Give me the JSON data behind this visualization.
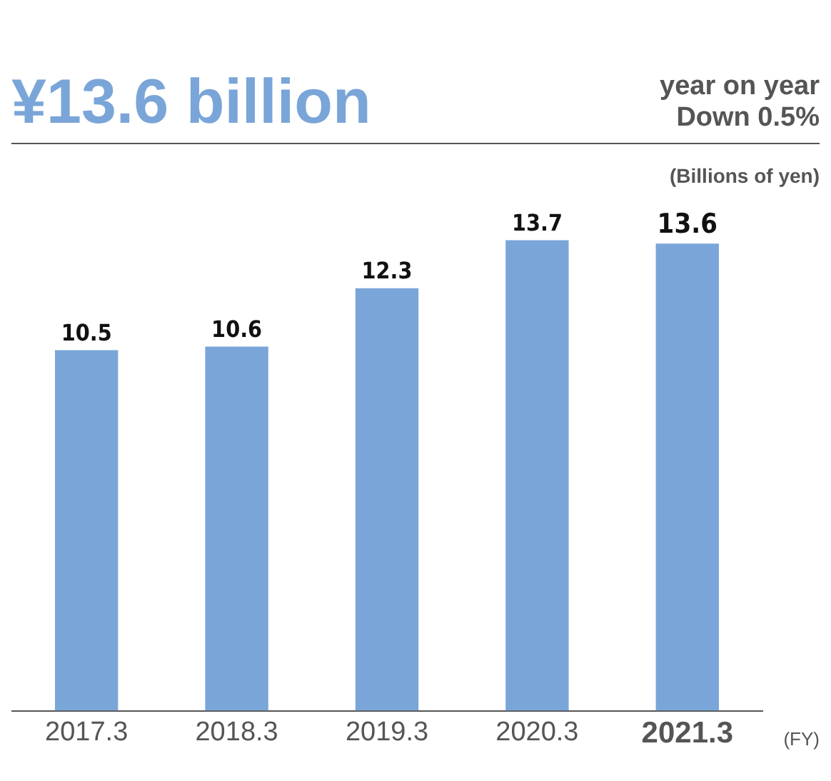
{
  "chart_data": {
    "type": "bar",
    "title": "¥13.6 billion",
    "subtitle": "year on year Down 0.5%",
    "ylabel": "(Billions of yen)",
    "xlabel": "(FY)",
    "categories": [
      "2017.3",
      "2018.3",
      "2019.3",
      "2020.3",
      "2021.3"
    ],
    "values": [
      10.5,
      10.6,
      12.3,
      13.7,
      13.6
    ],
    "color": "#7aa5d8",
    "data_labels": true,
    "grid": false,
    "legend": false
  }
}
